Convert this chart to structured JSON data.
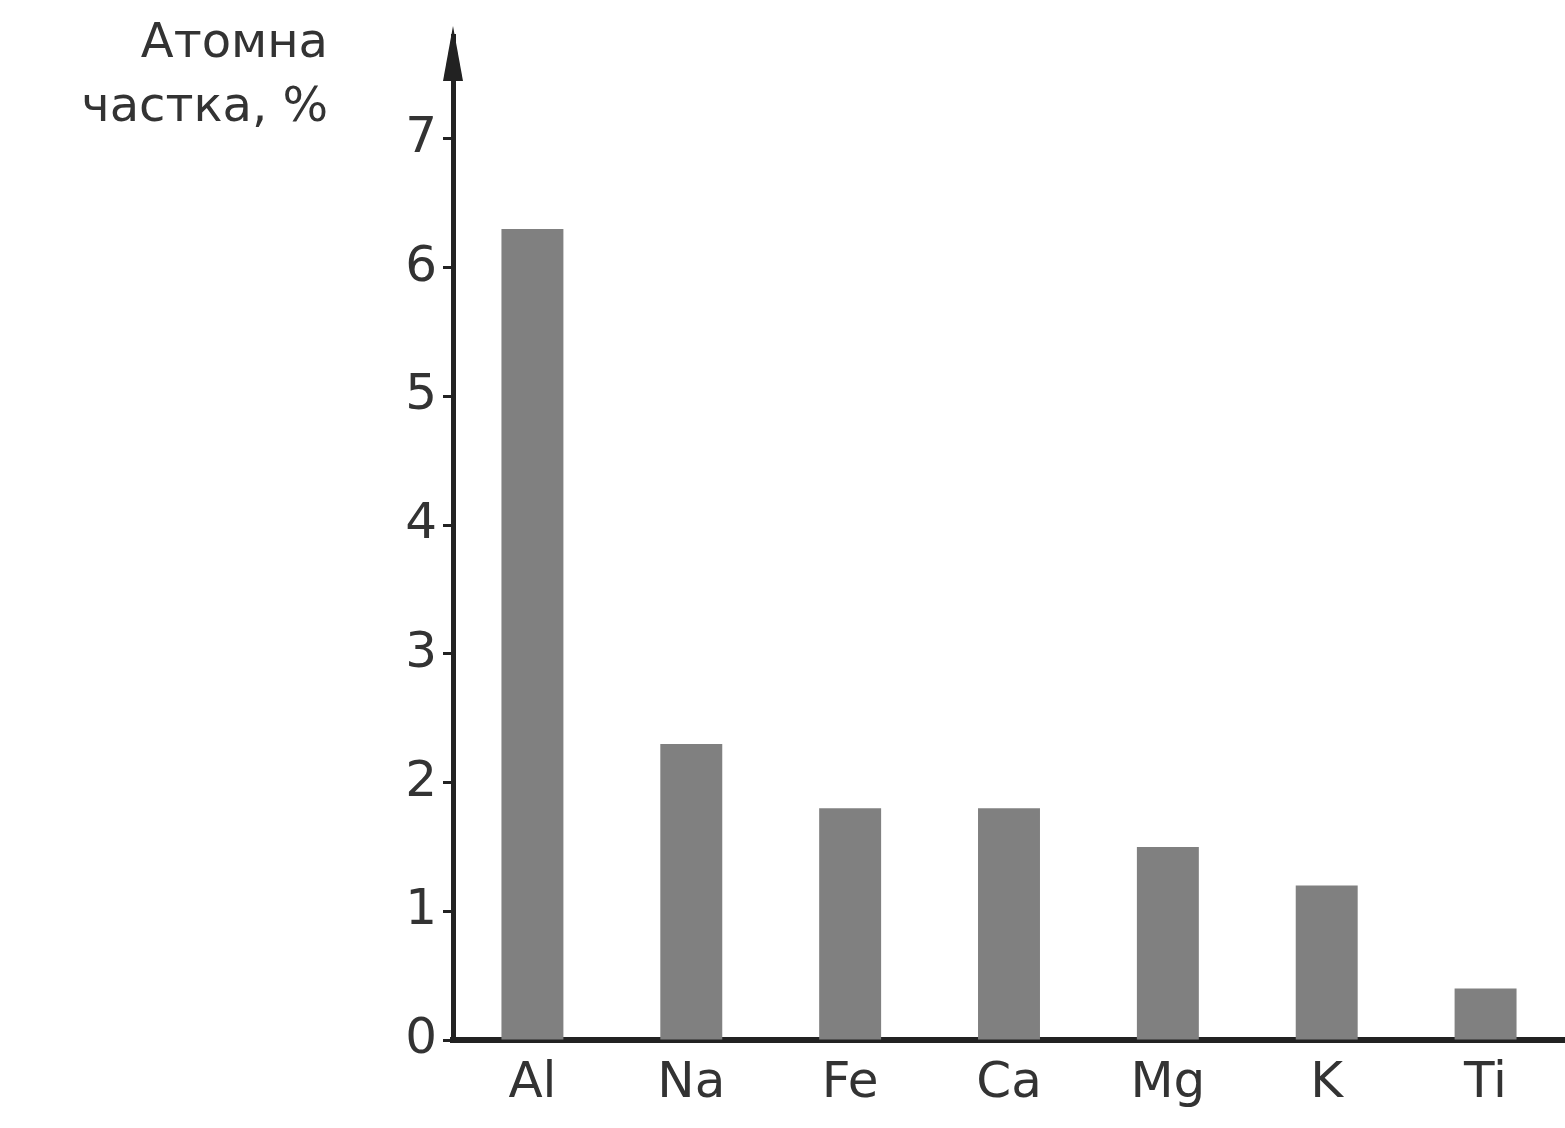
{
  "chart_data": {
    "type": "bar",
    "ylabel": "Атомна\nчастка, %",
    "categories": [
      "Al",
      "Na",
      "Fe",
      "Ca",
      "Mg",
      "K",
      "Ti"
    ],
    "values": [
      6.3,
      2.3,
      1.8,
      1.8,
      1.5,
      1.2,
      0.4
    ],
    "color": "#808080",
    "ylim": [
      0,
      7.8
    ],
    "yticks": [
      0,
      1,
      2,
      3,
      4,
      5,
      6,
      7
    ],
    "grid": false,
    "legend": false
  }
}
